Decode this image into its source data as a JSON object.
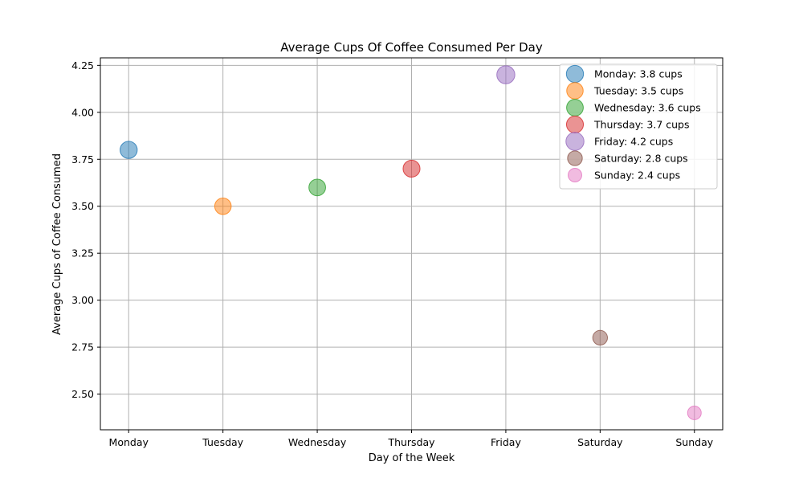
{
  "chart_data": {
    "type": "scatter",
    "title": "Average Cups Of Coffee Consumed Per Day",
    "xlabel": "Day of the Week",
    "ylabel": "Average Cups of Coffee Consumed",
    "categories": [
      "Monday",
      "Tuesday",
      "Wednesday",
      "Thursday",
      "Friday",
      "Saturday",
      "Sunday"
    ],
    "values": [
      3.8,
      3.5,
      3.6,
      3.7,
      4.2,
      2.8,
      2.4
    ],
    "series": [
      {
        "name": "Monday: 3.8 cups",
        "x": "Monday",
        "y": 3.8,
        "color": "#1f77b4"
      },
      {
        "name": "Tuesday: 3.5 cups",
        "x": "Tuesday",
        "y": 3.5,
        "color": "#ff7f0e"
      },
      {
        "name": "Wednesday: 3.6 cups",
        "x": "Wednesday",
        "y": 3.6,
        "color": "#2ca02c"
      },
      {
        "name": "Thursday: 3.7 cups",
        "x": "Thursday",
        "y": 3.7,
        "color": "#d62728"
      },
      {
        "name": "Friday: 4.2 cups",
        "x": "Friday",
        "y": 4.2,
        "color": "#9467bd"
      },
      {
        "name": "Saturday: 2.8 cups",
        "x": "Saturday",
        "y": 2.8,
        "color": "#8c564b"
      },
      {
        "name": "Sunday: 2.4 cups",
        "x": "Sunday",
        "y": 2.4,
        "color": "#e377c2"
      }
    ],
    "yticks": [
      "2.50",
      "2.75",
      "3.00",
      "3.25",
      "3.50",
      "3.75",
      "4.00",
      "4.25"
    ],
    "ylim": [
      2.31,
      4.29
    ],
    "marker_size_scale": "proportional to value",
    "marker_alpha": 0.5,
    "grid": true,
    "grid_color": "#b0b0b0",
    "legend_position": "upper right"
  }
}
